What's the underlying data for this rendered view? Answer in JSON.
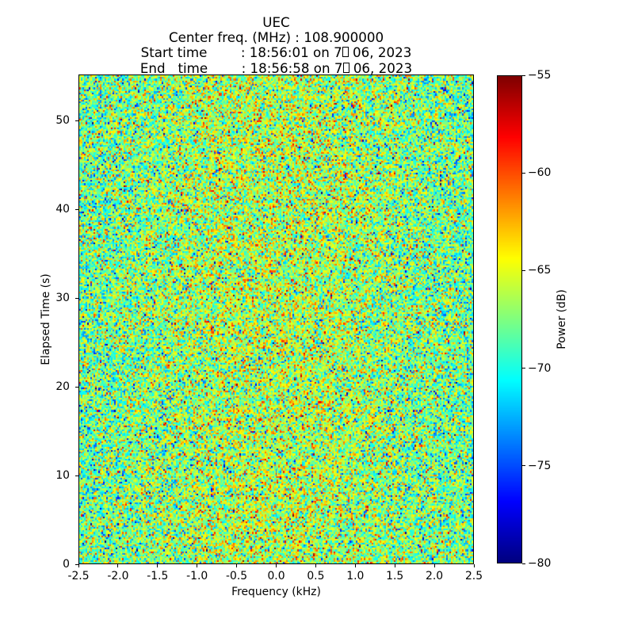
{
  "title": {
    "line1": "UEC",
    "line2": "Center freq. (MHz) : 108.900000",
    "line3_prefix": "Start time        : 18:56:01 on 7",
    "line3_suffix": " 06, 2023",
    "line4_prefix": "End   time        : 18:56:58 on 7",
    "line4_suffix": " 06, 2023"
  },
  "chart_data": {
    "type": "heatmap",
    "title_lines": [
      "UEC",
      "Center freq. (MHz) : 108.900000",
      "Start time        : 18:56:01 on 7□ 06, 2023",
      "End   time        : 18:56:58 on 7□ 06, 2023"
    ],
    "xlabel": "Frequency (kHz)",
    "ylabel": "Elapsed Time (s)",
    "xlim": [
      -2.5,
      2.5
    ],
    "ylim": [
      0,
      55.2
    ],
    "xticks": [
      {
        "v": -2.5,
        "label": "-2.5"
      },
      {
        "v": -2.0,
        "label": "-2.0"
      },
      {
        "v": -1.5,
        "label": "-1.5"
      },
      {
        "v": -1.0,
        "label": "-1.0"
      },
      {
        "v": -0.5,
        "label": "-0.5"
      },
      {
        "v": 0.0,
        "label": "0.0"
      },
      {
        "v": 0.5,
        "label": "0.5"
      },
      {
        "v": 1.0,
        "label": "1.0"
      },
      {
        "v": 1.5,
        "label": "1.5"
      },
      {
        "v": 2.0,
        "label": "2.0"
      },
      {
        "v": 2.5,
        "label": "2.5"
      }
    ],
    "yticks": [
      {
        "v": 0,
        "label": "0"
      },
      {
        "v": 10,
        "label": "10"
      },
      {
        "v": 20,
        "label": "20"
      },
      {
        "v": 30,
        "label": "30"
      },
      {
        "v": 40,
        "label": "40"
      },
      {
        "v": 50,
        "label": "50"
      }
    ],
    "colorbar": {
      "label": "Power (dB)",
      "lim": [
        -80,
        -55
      ],
      "colormap": "jet",
      "ticks": [
        {
          "v": -55,
          "label": "−55"
        },
        {
          "v": -60,
          "label": "−60"
        },
        {
          "v": -65,
          "label": "−65"
        },
        {
          "v": -70,
          "label": "−70"
        },
        {
          "v": -75,
          "label": "−75"
        },
        {
          "v": -80,
          "label": "−80"
        }
      ]
    },
    "heatmap_model": {
      "description": "random broadband noise, no coherent signal",
      "grid_cols": 249,
      "grid_rows": 280,
      "mean_db": -68.6,
      "std_db": 3.5,
      "center_warm_bias_db": 2.4,
      "center_bias_sigma_frac": 0.3,
      "low_outlier_frac": 0.005,
      "low_outlier_span_db": 5,
      "seed": 1234567
    }
  }
}
